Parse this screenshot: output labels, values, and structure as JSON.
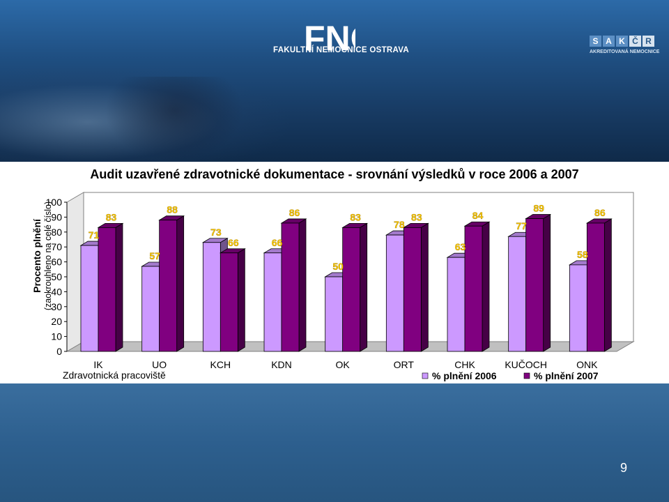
{
  "header": {
    "logo_letters": "FNO",
    "logo_text": "FAKULTNÍ NEMOCNICE OSTRAVA",
    "accreditation_letters": [
      "S",
      "A",
      "K",
      "Č",
      "R"
    ],
    "accreditation_text": "AKREDITOVANÁ NEMOCNICE"
  },
  "footer": {
    "page_number": "9"
  },
  "chart_data": {
    "type": "bar",
    "title": "Audit uzavřené zdravotnické dokumentace - srovnání výsledků v roce 2006 a 2007",
    "ylabel": "Procento plnění",
    "ylabel_sub": "(zaokrouhleno na celé číslo)",
    "xlabel": "Zdravotnická pracoviště",
    "ylim": [
      0,
      100
    ],
    "yticks": [
      0,
      10,
      20,
      30,
      40,
      50,
      60,
      70,
      80,
      90,
      100
    ],
    "categories": [
      "IK",
      "UO",
      "KCH",
      "KDN",
      "OK",
      "ORT",
      "CHK",
      "KUČOCH",
      "ONK"
    ],
    "series": [
      {
        "name": "% plnění 2006",
        "color": "#cc99ff",
        "values": [
          71,
          57,
          73,
          66,
          50,
          78,
          63,
          77,
          58
        ]
      },
      {
        "name": "% plnění 2007",
        "color": "#800080",
        "values": [
          83,
          88,
          66,
          86,
          83,
          83,
          84,
          89,
          86
        ]
      }
    ],
    "legend_position": "bottom-right",
    "label_color": "#ffcc00"
  }
}
